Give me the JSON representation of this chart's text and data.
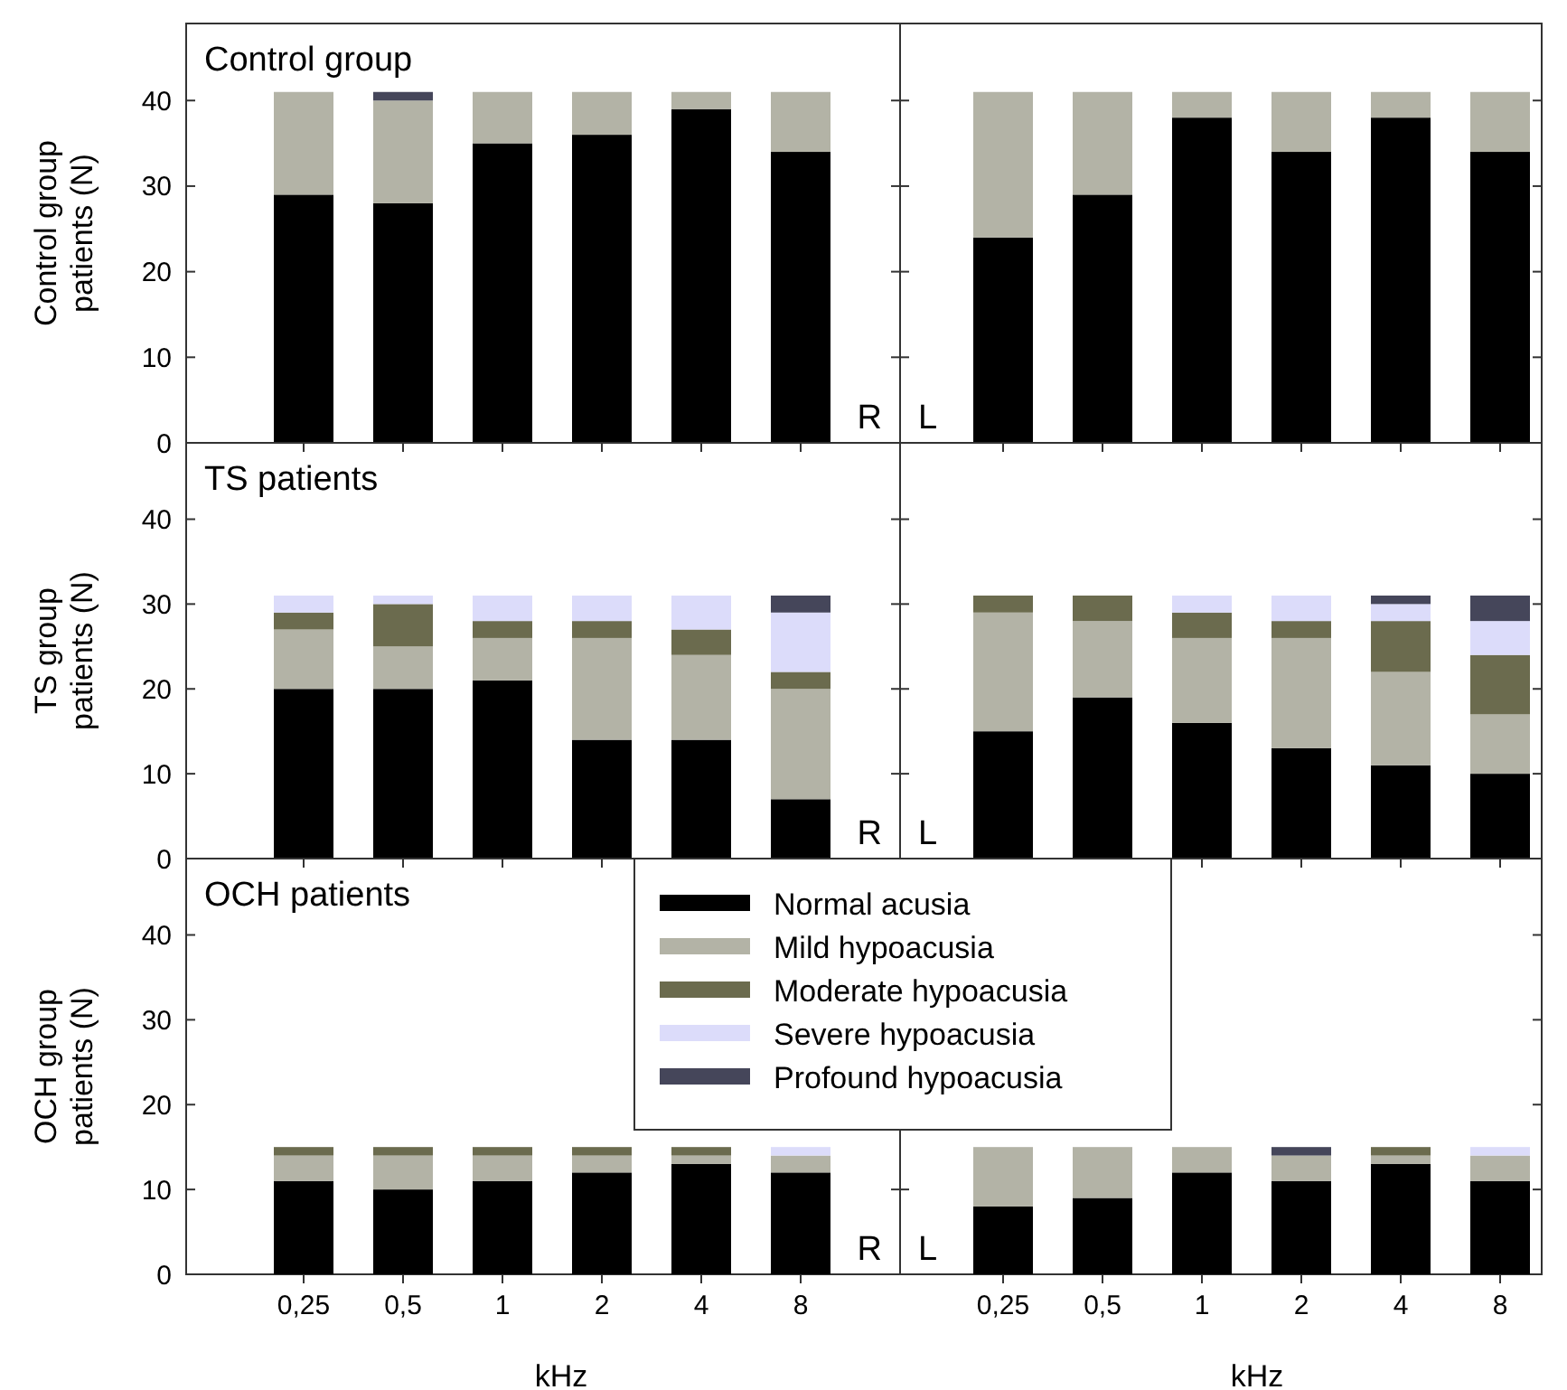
{
  "chart_data": [
    {
      "type": "bar",
      "stacked": true,
      "title": "Control group",
      "ylabel": "Control group patients (N)",
      "categories": [
        "0,25",
        "0,5",
        "1",
        "2",
        "4",
        "8"
      ],
      "ylim": [
        0,
        49
      ],
      "yticks": [
        0,
        10,
        20,
        30,
        40
      ],
      "tick_labels": "y",
      "annotations": [
        "R"
      ],
      "legend": false,
      "series": [
        {
          "color": "#000000",
          "values": [
            29,
            28,
            35,
            36,
            39,
            34
          ]
        },
        {
          "color": "#b3b3a6",
          "values": [
            12,
            12,
            6,
            5,
            2,
            7
          ]
        },
        {
          "color": "#45465a",
          "values": [
            0,
            1,
            0,
            0,
            0,
            0
          ]
        }
      ]
    },
    {
      "type": "bar",
      "stacked": true,
      "categories": [
        "0,25",
        "0,5",
        "1",
        "2",
        "4",
        "8"
      ],
      "ylim": [
        0,
        49
      ],
      "yticks": [
        0,
        10,
        20,
        30,
        40
      ],
      "tick_labels": false,
      "annotations": [
        "L"
      ],
      "legend": false,
      "series": [
        {
          "color": "#000000",
          "values": [
            24,
            29,
            38,
            34,
            38,
            34
          ]
        },
        {
          "color": "#b3b3a6",
          "values": [
            17,
            12,
            3,
            7,
            3,
            7
          ]
        }
      ]
    },
    {
      "type": "bar",
      "stacked": true,
      "title": "TS patients",
      "ylabel": "TS group patients (N)",
      "categories": [
        "0,25",
        "0,5",
        "1",
        "2",
        "4",
        "8"
      ],
      "ylim": [
        0,
        49
      ],
      "yticks": [
        0,
        10,
        20,
        30,
        40
      ],
      "tick_labels": "y",
      "annotations": [
        "R"
      ],
      "legend": false,
      "series": [
        {
          "color": "#000000",
          "values": [
            20,
            20,
            21,
            14,
            14,
            7
          ]
        },
        {
          "color": "#b3b3a6",
          "values": [
            7,
            5,
            5,
            12,
            10,
            13
          ]
        },
        {
          "color": "#6b6b4e",
          "values": [
            2,
            5,
            2,
            2,
            3,
            2
          ]
        },
        {
          "color": "#dcdcfa",
          "values": [
            2,
            1,
            3,
            3,
            4,
            7
          ]
        },
        {
          "color": "#45465a",
          "values": [
            0,
            0,
            0,
            0,
            0,
            2
          ]
        }
      ]
    },
    {
      "type": "bar",
      "stacked": true,
      "categories": [
        "0,25",
        "0,5",
        "1",
        "2",
        "4",
        "8"
      ],
      "ylim": [
        0,
        49
      ],
      "yticks": [
        0,
        10,
        20,
        30,
        40
      ],
      "tick_labels": false,
      "annotations": [
        "L"
      ],
      "legend": false,
      "series": [
        {
          "color": "#000000",
          "values": [
            15,
            19,
            16,
            13,
            11,
            10
          ]
        },
        {
          "color": "#b3b3a6",
          "values": [
            14,
            9,
            10,
            13,
            11,
            7
          ]
        },
        {
          "color": "#6b6b4e",
          "values": [
            2,
            3,
            3,
            2,
            6,
            7
          ]
        },
        {
          "color": "#dcdcfa",
          "values": [
            0,
            0,
            2,
            3,
            2,
            4
          ]
        },
        {
          "color": "#45465a",
          "values": [
            0,
            0,
            0,
            0,
            1,
            3
          ]
        }
      ]
    },
    {
      "type": "bar",
      "stacked": true,
      "title": "OCH patients",
      "ylabel": "OCH group patients (N)",
      "xlabel": "kHz",
      "categories": [
        "0,25",
        "0,5",
        "1",
        "2",
        "4",
        "8"
      ],
      "ylim": [
        0,
        49
      ],
      "yticks": [
        0,
        10,
        20,
        30,
        40
      ],
      "annotations": [
        "R"
      ],
      "legend": false,
      "series": [
        {
          "color": "#000000",
          "values": [
            11,
            10,
            11,
            12,
            13,
            12
          ]
        },
        {
          "color": "#b3b3a6",
          "values": [
            3,
            4,
            3,
            2,
            1,
            2
          ]
        },
        {
          "color": "#6b6b4e",
          "values": [
            1,
            1,
            1,
            1,
            1,
            0
          ]
        },
        {
          "color": "#dcdcfa",
          "values": [
            0,
            0,
            0,
            0,
            0,
            1
          ]
        }
      ]
    },
    {
      "type": "bar",
      "stacked": true,
      "xlabel": "kHz",
      "categories": [
        "0,25",
        "0,5",
        "1",
        "2",
        "4",
        "8"
      ],
      "ylim": [
        0,
        49
      ],
      "yticks": [
        0,
        10,
        20,
        30,
        40
      ],
      "tick_labels": "x",
      "annotations": [
        "L"
      ],
      "legend": "top left",
      "series": [
        {
          "name": "Normal acusia",
          "color": "#000000",
          "values": [
            8,
            9,
            12,
            11,
            13,
            11
          ]
        },
        {
          "name": "Mild hypoacusia",
          "color": "#b3b3a6",
          "values": [
            7,
            6,
            3,
            3,
            1,
            3
          ]
        },
        {
          "name": "Moderate hypoacusia",
          "color": "#6b6b4e",
          "values": [
            0,
            0,
            0,
            0,
            1,
            0
          ]
        },
        {
          "name": "Severe hypoacusia",
          "color": "#dcdcfa",
          "values": [
            0,
            0,
            0,
            0,
            0,
            1
          ]
        },
        {
          "name": "Profound hypoacusia",
          "color": "#45465a",
          "values": [
            0,
            0,
            0,
            1,
            0,
            0
          ]
        }
      ]
    }
  ]
}
